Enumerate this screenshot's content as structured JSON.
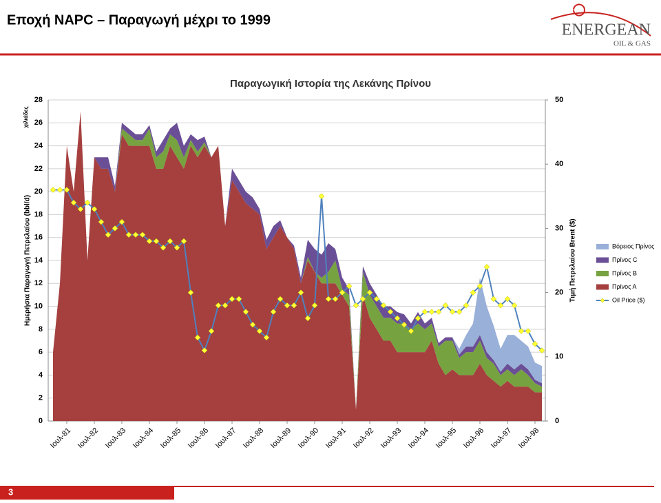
{
  "header": {
    "title": "Εποχή NAPC – Παραγωγή μέχρι το 1999",
    "logo": "ENERGEAN",
    "logo_sub": "OIL & GAS"
  },
  "chart_data": {
    "type": "stacked-area-line",
    "title": "Παραγωγική Ιστορία της Λεκάνης Πρίνου",
    "y_label": "Ημερήσια Παραγωγή Πετρελαίου (bbl/d)",
    "y_unit": "χιλιάδες",
    "y2_label": "Τιμή Πετρελαίου Brent ($)",
    "categories": [
      null,
      null,
      "Ιουλ-81",
      null,
      null,
      null,
      "Ιουλ-82",
      null,
      null,
      null,
      "Ιουλ-83",
      null,
      null,
      null,
      "Ιουλ-84",
      null,
      null,
      null,
      "Ιουλ-85",
      null,
      null,
      null,
      "Ιουλ-86",
      null,
      null,
      null,
      "Ιουλ-87",
      null,
      null,
      null,
      "Ιουλ-88",
      null,
      null,
      null,
      "Ιουλ-89",
      null,
      null,
      null,
      "Ιουλ-90",
      null,
      null,
      null,
      "Ιουλ-91",
      null,
      null,
      null,
      "Ιουλ-92",
      null,
      null,
      null,
      "Ιουλ-93",
      null,
      null,
      null,
      "Ιουλ-94",
      null,
      null,
      null,
      "Ιουλ-95",
      null,
      null,
      null,
      "Ιουλ-96",
      null,
      null,
      null,
      "Ιουλ-97",
      null,
      null,
      null,
      "Ιουλ-98",
      null
    ],
    "series": [
      {
        "name": "Πρίνος Α",
        "color": "#a5403f",
        "values": [
          6,
          12,
          24,
          20,
          27,
          14,
          23,
          22,
          22,
          20,
          25,
          24,
          24,
          24,
          24,
          22,
          22,
          24,
          23,
          22,
          24,
          23,
          24,
          23,
          24,
          17,
          21,
          20,
          19,
          18.5,
          18,
          15,
          16,
          17,
          16,
          15,
          12,
          14,
          13,
          12,
          12,
          12,
          11,
          10,
          1,
          11,
          9,
          8,
          7,
          7,
          6,
          6,
          6,
          6,
          6,
          7,
          5,
          4,
          4.5,
          4,
          4,
          4,
          5,
          4,
          3.5,
          3,
          3.5,
          3,
          3,
          3,
          2.5,
          2.5
        ]
      },
      {
        "name": "Πρίνος Β",
        "color": "#77a240",
        "values": [
          0,
          0,
          0,
          0,
          0,
          0,
          0,
          0,
          0,
          0,
          0.5,
          1,
          0.5,
          0.5,
          1.5,
          1,
          1.5,
          1,
          1.5,
          1,
          0.5,
          0.5,
          0.3,
          0,
          0,
          0,
          0,
          0,
          0,
          0,
          0,
          0,
          0,
          0,
          0,
          0,
          0,
          0.3,
          0,
          0.5,
          1,
          2,
          0.5,
          1,
          0,
          2,
          2,
          2,
          2,
          2,
          2.5,
          2.5,
          2,
          2.5,
          2,
          1.5,
          1.5,
          3,
          2.5,
          1.5,
          2,
          2,
          2,
          1.5,
          1.5,
          1,
          1,
          1,
          1.5,
          1,
          0.8,
          0.5
        ]
      },
      {
        "name": "Πρίνος C",
        "color": "#6b4f96",
        "values": [
          0,
          0,
          0,
          0,
          0,
          0,
          0,
          1,
          1,
          0.5,
          0.5,
          0.5,
          0.5,
          0.5,
          0.3,
          0.5,
          1,
          0.5,
          1.5,
          1,
          0.5,
          1,
          0.5,
          0,
          0,
          0,
          1,
          1,
          1,
          1,
          0.5,
          0.8,
          1,
          0.5,
          0,
          0.3,
          0.5,
          1.5,
          2,
          2,
          2.5,
          1,
          1,
          0.5,
          0,
          0.5,
          1,
          1,
          1,
          1,
          1,
          0.8,
          0.5,
          1,
          0.5,
          0.5,
          0.3,
          0.3,
          0.3,
          0.3,
          0.5,
          0.5,
          0.5,
          0.5,
          0.3,
          0.3,
          0.5,
          0.5,
          0.5,
          0.5,
          0.3,
          0.3
        ]
      },
      {
        "name": "Βόρειος Πρίνος",
        "color": "#99b0d8",
        "values": [
          0,
          0,
          0,
          0,
          0,
          0,
          0,
          0,
          0,
          0,
          0,
          0,
          0,
          0,
          0,
          0,
          0,
          0,
          0,
          0,
          0,
          0,
          0,
          0,
          0,
          0,
          0,
          0,
          0,
          0,
          0,
          0,
          0,
          0,
          0,
          0,
          0,
          0,
          0,
          0,
          0,
          0,
          0,
          0,
          0,
          0,
          0,
          0,
          0,
          0,
          0,
          0,
          0,
          0,
          0,
          0,
          0,
          0,
          0,
          0.5,
          1,
          2,
          5,
          4,
          3,
          2,
          2.5,
          3,
          2,
          2,
          1.5,
          1.5
        ]
      },
      {
        "name": "Oil Price ($)",
        "color": "#4f81bd",
        "marker_color": "#ffff33",
        "axis": "y2",
        "values": [
          36,
          36,
          36,
          34,
          33,
          34,
          33,
          31,
          29,
          30,
          31,
          29,
          29,
          29,
          28,
          28,
          27,
          28,
          27,
          28,
          20,
          13,
          11,
          14,
          18,
          18,
          19,
          19,
          17,
          15,
          14,
          13,
          17,
          19,
          18,
          18,
          20,
          16,
          18,
          35,
          19,
          19,
          20,
          21,
          18,
          19,
          20,
          19,
          18,
          17,
          16,
          15,
          14,
          16,
          17,
          17,
          17,
          18,
          17,
          17,
          18,
          20,
          21,
          24,
          19,
          18,
          19,
          18,
          14,
          14,
          12,
          11
        ]
      }
    ],
    "ylim": [
      0,
      28
    ],
    "yticks": [
      0,
      2,
      4,
      6,
      8,
      10,
      12,
      14,
      16,
      18,
      20,
      22,
      24,
      26,
      28
    ],
    "y2lim": [
      0,
      50
    ],
    "y2ticks": [
      0,
      10,
      20,
      30,
      40,
      50
    ],
    "grid": true,
    "legend": "right"
  },
  "footer": {
    "page": 3
  }
}
